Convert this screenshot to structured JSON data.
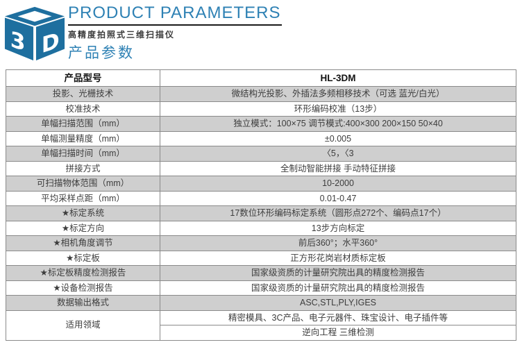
{
  "header": {
    "logo_icon": "3d-cube-logo",
    "title": "PRODUCT PARAMETERS",
    "subtitle_cn": "高精度拍照式三维扫描仪",
    "section_cn": "产品参数"
  },
  "colors": {
    "accent_blue": "#2e81b4",
    "logo_blue": "#1e6f9f",
    "row_gray": "#cfcfcf",
    "inner_border": "#8a8a8a",
    "outer_border": "#3c3c3c"
  },
  "table": {
    "rows": [
      {
        "label": "产品型号",
        "value": "HL-3DM",
        "bold": true
      },
      {
        "label": "投影、光栅技术",
        "value": "微结构光投影、外插法多频相移技术（可选 蓝光/白光）"
      },
      {
        "label": "校准技术",
        "value": "环形编码校准（13步）"
      },
      {
        "label": "单幅扫描范围（mm）",
        "value": "独立模式：100×75 调节模式:400×300 200×150 50×40"
      },
      {
        "label": "单幅测量精度（mm）",
        "value": "±0.005"
      },
      {
        "label": "单幅扫描时间（mm）",
        "value": "〈5，〈3"
      },
      {
        "label": "拼接方式",
        "value": "全制动智能拼接 手动特征拼接"
      },
      {
        "label": "可扫描物体范围（mm）",
        "value": "10-2000"
      },
      {
        "label": "平均采样点距（mm）",
        "value": "0.01-0.47"
      },
      {
        "label": "★标定系统",
        "value": "17数位环形编码标定系统（圆形点272个、编码点17个）"
      },
      {
        "label": "★标定方向",
        "value": "13步方向标定"
      },
      {
        "label": "★相机角度调节",
        "value": "前后360°；水平360°"
      },
      {
        "label": "★标定板",
        "value": "正方形花岗岩材质标定板"
      },
      {
        "label": "★标定板精度检测报告",
        "value": "国家级资质的计量研究院出具的精度检测报告"
      },
      {
        "label": "★设备检测报告",
        "value": "国家级资质的计量研究院出具的精度检测报告"
      },
      {
        "label": "数据输出格式",
        "value": "ASC,STL,PLY,IGES"
      },
      {
        "label": "适用领域",
        "values": [
          "精密模具、3C产品、电子元器件、珠宝设计、电子插件等",
          "逆向工程 三维检测"
        ]
      }
    ]
  }
}
